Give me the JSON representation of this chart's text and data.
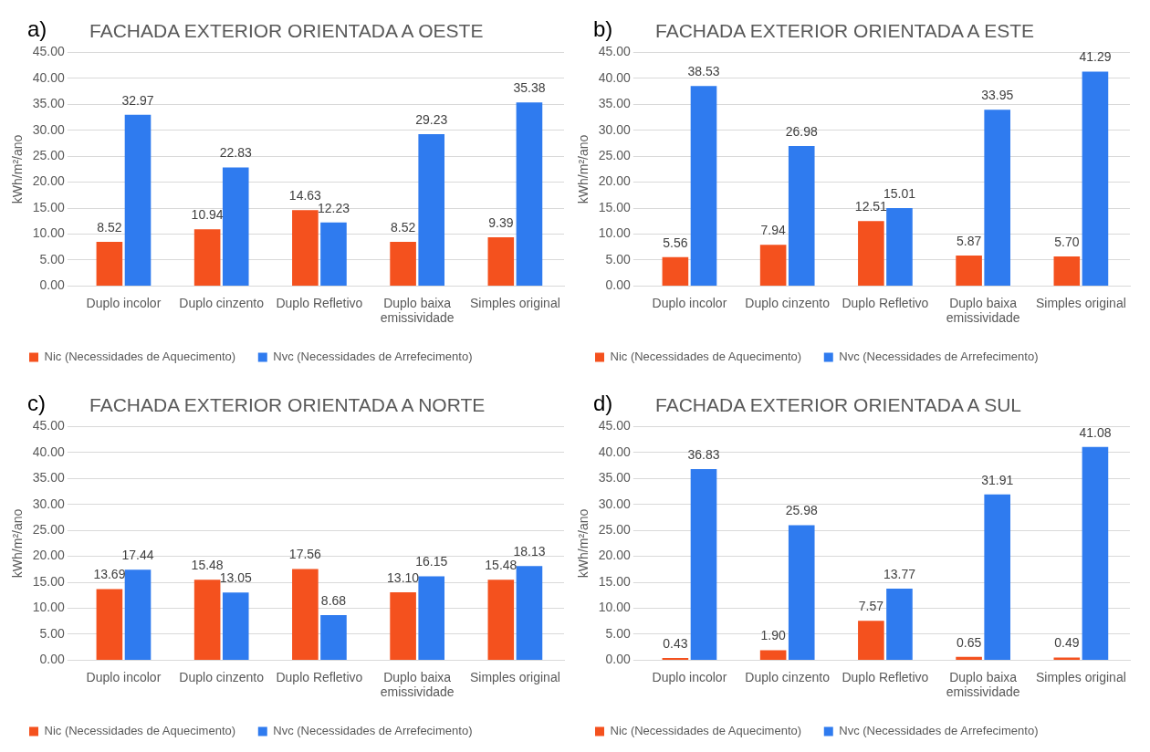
{
  "chart_data": [
    {
      "type": "bar",
      "title": "FACHADA EXTERIOR ORIENTADA A OESTE",
      "annotations": [
        "a)"
      ],
      "ylabel": "kWh/m²/ano",
      "categories": [
        "Duplo incolor",
        "Duplo cinzento",
        "Duplo Refletivo",
        "Duplo baixa emissividade",
        "Simples original"
      ],
      "series": [
        {
          "name": "Nic (Necessidades de Aquecimento)",
          "color": "#f4511e",
          "values": [
            8.52,
            10.94,
            14.63,
            8.52,
            9.39
          ],
          "value_labels": [
            "8.52",
            "10.94",
            "14.63",
            "8.52",
            "9.39"
          ]
        },
        {
          "name": "Nvc (Necessidades de Arrefecimento)",
          "color": "#2f7bef",
          "values": [
            32.97,
            22.83,
            12.23,
            29.23,
            35.38
          ],
          "value_labels": [
            "32.97",
            "22.83",
            "12.23",
            "29.23",
            "35.38"
          ]
        }
      ],
      "ylim": [
        0,
        45
      ],
      "yticks": [
        {
          "value": 0,
          "label": "0.00"
        },
        {
          "value": 5,
          "label": "5.00"
        },
        {
          "value": 10,
          "label": "10.00"
        },
        {
          "value": 15,
          "label": "15.00"
        },
        {
          "value": 20,
          "label": "20.00"
        },
        {
          "value": 25,
          "label": "25.00"
        },
        {
          "value": 30,
          "label": "30.00"
        },
        {
          "value": 35,
          "label": "35.00"
        },
        {
          "value": 40,
          "label": "40.00"
        },
        {
          "value": 45,
          "label": "45.00"
        }
      ],
      "grid": "y",
      "legend": "bottom"
    },
    {
      "type": "bar",
      "title": "FACHADA EXTERIOR ORIENTADA A ESTE",
      "annotations": [
        "b)"
      ],
      "ylabel": "kWh/m²/ano",
      "categories": [
        "Duplo incolor",
        "Duplo cinzento",
        "Duplo Refletivo",
        "Duplo baixa emissividade",
        "Simples original"
      ],
      "series": [
        {
          "name": "Nic (Necessidades de Aquecimento)",
          "color": "#f4511e",
          "values": [
            5.56,
            7.94,
            12.51,
            5.87,
            5.7
          ],
          "value_labels": [
            "5.56",
            "7.94",
            "12.51",
            "5.87",
            "5.70"
          ]
        },
        {
          "name": "Nvc (Necessidades de Arrefecimento)",
          "color": "#2f7bef",
          "values": [
            38.53,
            26.98,
            15.01,
            33.95,
            41.29
          ],
          "value_labels": [
            "38.53",
            "26.98",
            "15.01",
            "33.95",
            "41.29"
          ]
        }
      ],
      "ylim": [
        0,
        45
      ],
      "yticks": [
        {
          "value": 0,
          "label": "0.00"
        },
        {
          "value": 5,
          "label": "5.00"
        },
        {
          "value": 10,
          "label": "10.00"
        },
        {
          "value": 15,
          "label": "15.00"
        },
        {
          "value": 20,
          "label": "20.00"
        },
        {
          "value": 25,
          "label": "25.00"
        },
        {
          "value": 30,
          "label": "30.00"
        },
        {
          "value": 35,
          "label": "35.00"
        },
        {
          "value": 40,
          "label": "40.00"
        },
        {
          "value": 45,
          "label": "45.00"
        }
      ],
      "grid": "y",
      "legend": "bottom"
    },
    {
      "type": "bar",
      "title": "FACHADA EXTERIOR ORIENTADA A NORTE",
      "annotations": [
        "c)"
      ],
      "ylabel": "kWh/m²/ano",
      "categories": [
        "Duplo incolor",
        "Duplo cinzento",
        "Duplo Refletivo",
        "Duplo baixa emissividade",
        "Simples original"
      ],
      "series": [
        {
          "name": "Nic (Necessidades de Aquecimento)",
          "color": "#f4511e",
          "values": [
            13.69,
            15.48,
            17.56,
            13.1,
            15.48
          ],
          "value_labels": [
            "13.69",
            "15.48",
            "17.56",
            "13.10",
            "15.48"
          ]
        },
        {
          "name": "Nvc (Necessidades de Arrefecimento)",
          "color": "#2f7bef",
          "values": [
            17.44,
            13.05,
            8.68,
            16.15,
            18.13
          ],
          "value_labels": [
            "17.44",
            "13.05",
            "8.68",
            "16.15",
            "18.13"
          ]
        }
      ],
      "ylim": [
        0,
        45
      ],
      "yticks": [
        {
          "value": 0,
          "label": "0.00"
        },
        {
          "value": 5,
          "label": "5.00"
        },
        {
          "value": 10,
          "label": "10.00"
        },
        {
          "value": 15,
          "label": "15.00"
        },
        {
          "value": 20,
          "label": "20.00"
        },
        {
          "value": 25,
          "label": "25.00"
        },
        {
          "value": 30,
          "label": "30.00"
        },
        {
          "value": 35,
          "label": "35.00"
        },
        {
          "value": 40,
          "label": "40.00"
        },
        {
          "value": 45,
          "label": "45.00"
        }
      ],
      "grid": "y",
      "legend": "bottom"
    },
    {
      "type": "bar",
      "title": "FACHADA EXTERIOR ORIENTADA A SUL",
      "annotations": [
        "d)"
      ],
      "ylabel": "kWh/m²/ano",
      "categories": [
        "Duplo incolor",
        "Duplo cinzento",
        "Duplo Refletivo",
        "Duplo baixa emissividade",
        "Simples original"
      ],
      "series": [
        {
          "name": "Nic (Necessidades de Aquecimento)",
          "color": "#f4511e",
          "values": [
            0.43,
            1.9,
            7.57,
            0.65,
            0.49
          ],
          "value_labels": [
            "0.43",
            "1.90",
            "7.57",
            "0.65",
            "0.49"
          ]
        },
        {
          "name": "Nvc (Necessidades de Arrefecimento)",
          "color": "#2f7bef",
          "values": [
            36.83,
            25.98,
            13.77,
            31.91,
            41.08
          ],
          "value_labels": [
            "36.83",
            "25.98",
            "13.77",
            "31.91",
            "41.08"
          ]
        }
      ],
      "ylim": [
        0,
        45
      ],
      "yticks": [
        {
          "value": 0,
          "label": "0.00"
        },
        {
          "value": 5,
          "label": "5.00"
        },
        {
          "value": 10,
          "label": "10.00"
        },
        {
          "value": 15,
          "label": "15.00"
        },
        {
          "value": 20,
          "label": "20.00"
        },
        {
          "value": 25,
          "label": "25.00"
        },
        {
          "value": 30,
          "label": "30.00"
        },
        {
          "value": 35,
          "label": "35.00"
        },
        {
          "value": 40,
          "label": "40.00"
        },
        {
          "value": 45,
          "label": "45.00"
        }
      ],
      "grid": "y",
      "legend": "bottom"
    }
  ]
}
